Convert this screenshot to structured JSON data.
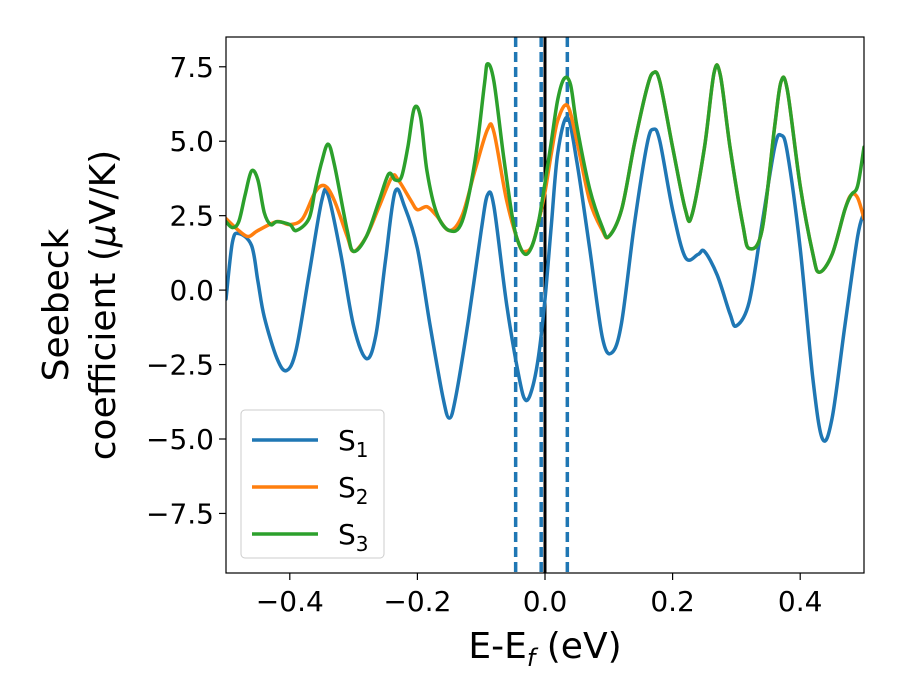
{
  "chart_data": {
    "type": "line",
    "title": "",
    "xlabel": {
      "base": "E-E",
      "sub": "f",
      "rest": " (eV)"
    },
    "ylabel": {
      "line1": "Seebeck",
      "line2": "coefficient  (",
      "mu": "μ",
      "unit": "V/K)"
    },
    "xlim": [
      -0.5,
      0.5
    ],
    "ylim": [
      -9.5,
      8.5
    ],
    "xticks": [
      -0.4,
      -0.2,
      0.0,
      0.2,
      0.4
    ],
    "xtick_labels": [
      "−0.4",
      "−0.2",
      "0.0",
      "0.2",
      "0.4"
    ],
    "yticks": [
      7.5,
      5.0,
      2.5,
      0.0,
      -2.5,
      -5.0,
      -7.5
    ],
    "ytick_labels": [
      "7.5",
      "5.0",
      "2.5",
      "0.0",
      "−2.5",
      "−5.0",
      "−7.5"
    ],
    "grid": false,
    "legend_position": "lower-left",
    "vlines": [
      {
        "x": -0.046,
        "style": "dashed",
        "color": "#1f77b4"
      },
      {
        "x": -0.006,
        "style": "dashed",
        "color": "#1f77b4"
      },
      {
        "x": 0.0,
        "style": "solid",
        "color": "#000000"
      },
      {
        "x": 0.035,
        "style": "dashed",
        "color": "#1f77b4"
      }
    ],
    "series": [
      {
        "base": "S",
        "sub": "1",
        "color": "#1f77b4",
        "points": [
          [
            -0.5,
            -0.3
          ],
          [
            -0.49,
            1.6
          ],
          [
            -0.48,
            1.9
          ],
          [
            -0.46,
            1.5
          ],
          [
            -0.45,
            0.3
          ],
          [
            -0.44,
            -0.9
          ],
          [
            -0.42,
            -2.3
          ],
          [
            -0.405,
            -2.7
          ],
          [
            -0.39,
            -2.0
          ],
          [
            -0.37,
            0.5
          ],
          [
            -0.35,
            3.0
          ],
          [
            -0.34,
            3.2
          ],
          [
            -0.32,
            1.2
          ],
          [
            -0.3,
            -1.2
          ],
          [
            -0.28,
            -2.3
          ],
          [
            -0.265,
            -1.5
          ],
          [
            -0.25,
            1.0
          ],
          [
            -0.235,
            3.3
          ],
          [
            -0.22,
            2.8
          ],
          [
            -0.2,
            1.4
          ],
          [
            -0.18,
            -1.2
          ],
          [
            -0.16,
            -3.6
          ],
          [
            -0.15,
            -4.3
          ],
          [
            -0.14,
            -3.6
          ],
          [
            -0.12,
            -1.0
          ],
          [
            -0.1,
            2.0
          ],
          [
            -0.09,
            3.2
          ],
          [
            -0.08,
            2.8
          ],
          [
            -0.06,
            -0.5
          ],
          [
            -0.04,
            -3.0
          ],
          [
            -0.03,
            -3.7
          ],
          [
            -0.02,
            -3.3
          ],
          [
            -0.01,
            -2.2
          ],
          [
            0.0,
            -0.3
          ],
          [
            0.01,
            2.2
          ],
          [
            0.02,
            4.6
          ],
          [
            0.035,
            5.8
          ],
          [
            0.05,
            4.3
          ],
          [
            0.07,
            1.4
          ],
          [
            0.09,
            -1.6
          ],
          [
            0.105,
            -2.1
          ],
          [
            0.12,
            -1.1
          ],
          [
            0.14,
            2.2
          ],
          [
            0.16,
            4.9
          ],
          [
            0.17,
            5.4
          ],
          [
            0.18,
            5.0
          ],
          [
            0.2,
            2.7
          ],
          [
            0.22,
            1.1
          ],
          [
            0.24,
            1.2
          ],
          [
            0.25,
            1.3
          ],
          [
            0.27,
            0.5
          ],
          [
            0.29,
            -0.8
          ],
          [
            0.3,
            -1.2
          ],
          [
            0.32,
            -0.4
          ],
          [
            0.34,
            2.2
          ],
          [
            0.36,
            4.8
          ],
          [
            0.37,
            5.2
          ],
          [
            0.38,
            4.6
          ],
          [
            0.4,
            1.4
          ],
          [
            0.42,
            -3.0
          ],
          [
            0.435,
            -5.0
          ],
          [
            0.45,
            -4.3
          ],
          [
            0.47,
            -1.2
          ],
          [
            0.49,
            1.8
          ],
          [
            0.5,
            2.6
          ]
        ]
      },
      {
        "base": "S",
        "sub": "2",
        "color": "#ff7f0e",
        "points": [
          [
            -0.5,
            2.4
          ],
          [
            -0.48,
            2.0
          ],
          [
            -0.465,
            1.8
          ],
          [
            -0.45,
            2.0
          ],
          [
            -0.42,
            2.3
          ],
          [
            -0.4,
            2.2
          ],
          [
            -0.38,
            2.4
          ],
          [
            -0.36,
            3.3
          ],
          [
            -0.345,
            3.5
          ],
          [
            -0.33,
            3.0
          ],
          [
            -0.31,
            1.8
          ],
          [
            -0.3,
            1.3
          ],
          [
            -0.28,
            1.8
          ],
          [
            -0.26,
            2.8
          ],
          [
            -0.24,
            3.8
          ],
          [
            -0.23,
            3.7
          ],
          [
            -0.21,
            3.0
          ],
          [
            -0.2,
            2.7
          ],
          [
            -0.185,
            2.8
          ],
          [
            -0.17,
            2.5
          ],
          [
            -0.15,
            2.0
          ],
          [
            -0.13,
            2.5
          ],
          [
            -0.11,
            4.0
          ],
          [
            -0.09,
            5.4
          ],
          [
            -0.08,
            5.3
          ],
          [
            -0.06,
            3.0
          ],
          [
            -0.04,
            1.5
          ],
          [
            -0.03,
            1.3
          ],
          [
            -0.02,
            1.5
          ],
          [
            -0.01,
            2.3
          ],
          [
            0.0,
            3.3
          ],
          [
            0.01,
            4.6
          ],
          [
            0.02,
            5.7
          ],
          [
            0.035,
            6.2
          ],
          [
            0.05,
            5.0
          ],
          [
            0.07,
            3.0
          ],
          [
            0.09,
            2.0
          ],
          [
            0.1,
            1.8
          ],
          [
            0.12,
            2.7
          ],
          [
            0.14,
            4.9
          ],
          [
            0.16,
            6.8
          ],
          [
            0.17,
            7.3
          ],
          [
            0.18,
            7.0
          ],
          [
            0.2,
            4.8
          ],
          [
            0.22,
            2.7
          ],
          [
            0.23,
            2.5
          ],
          [
            0.25,
            4.8
          ],
          [
            0.265,
            7.3
          ],
          [
            0.275,
            7.2
          ],
          [
            0.29,
            4.8
          ],
          [
            0.31,
            2.2
          ],
          [
            0.32,
            1.4
          ],
          [
            0.34,
            2.0
          ],
          [
            0.36,
            5.5
          ],
          [
            0.37,
            7.0
          ],
          [
            0.38,
            6.7
          ],
          [
            0.4,
            3.5
          ],
          [
            0.42,
            1.2
          ],
          [
            0.43,
            0.6
          ],
          [
            0.45,
            1.2
          ],
          [
            0.47,
            2.7
          ],
          [
            0.48,
            3.2
          ],
          [
            0.49,
            3.1
          ],
          [
            0.5,
            2.4
          ]
        ]
      },
      {
        "base": "S",
        "sub": "3",
        "color": "#2ca02c",
        "points": [
          [
            -0.5,
            2.3
          ],
          [
            -0.49,
            2.1
          ],
          [
            -0.48,
            2.3
          ],
          [
            -0.47,
            3.2
          ],
          [
            -0.46,
            4.0
          ],
          [
            -0.45,
            3.7
          ],
          [
            -0.44,
            2.6
          ],
          [
            -0.43,
            2.2
          ],
          [
            -0.42,
            2.3
          ],
          [
            -0.4,
            2.2
          ],
          [
            -0.39,
            2.0
          ],
          [
            -0.37,
            2.4
          ],
          [
            -0.36,
            3.4
          ],
          [
            -0.35,
            4.3
          ],
          [
            -0.34,
            4.9
          ],
          [
            -0.33,
            4.2
          ],
          [
            -0.31,
            2.0
          ],
          [
            -0.3,
            1.3
          ],
          [
            -0.28,
            1.8
          ],
          [
            -0.26,
            3.0
          ],
          [
            -0.245,
            3.9
          ],
          [
            -0.235,
            3.7
          ],
          [
            -0.225,
            3.8
          ],
          [
            -0.215,
            4.8
          ],
          [
            -0.205,
            6.1
          ],
          [
            -0.195,
            5.8
          ],
          [
            -0.185,
            4.0
          ],
          [
            -0.17,
            2.6
          ],
          [
            -0.15,
            2.0
          ],
          [
            -0.13,
            2.3
          ],
          [
            -0.11,
            4.3
          ],
          [
            -0.095,
            6.9
          ],
          [
            -0.09,
            7.6
          ],
          [
            -0.08,
            7.0
          ],
          [
            -0.065,
            4.5
          ],
          [
            -0.05,
            2.3
          ],
          [
            -0.04,
            1.5
          ],
          [
            -0.03,
            1.2
          ],
          [
            -0.02,
            1.5
          ],
          [
            -0.01,
            2.3
          ],
          [
            0.0,
            3.6
          ],
          [
            0.01,
            5.0
          ],
          [
            0.02,
            6.4
          ],
          [
            0.03,
            7.1
          ],
          [
            0.04,
            6.9
          ],
          [
            0.05,
            5.5
          ],
          [
            0.07,
            3.4
          ],
          [
            0.09,
            2.1
          ],
          [
            0.1,
            1.8
          ],
          [
            0.12,
            2.7
          ],
          [
            0.14,
            4.9
          ],
          [
            0.16,
            6.8
          ],
          [
            0.17,
            7.3
          ],
          [
            0.18,
            7.0
          ],
          [
            0.2,
            4.8
          ],
          [
            0.22,
            2.7
          ],
          [
            0.23,
            2.5
          ],
          [
            0.25,
            4.8
          ],
          [
            0.265,
            7.3
          ],
          [
            0.275,
            7.2
          ],
          [
            0.29,
            4.8
          ],
          [
            0.31,
            2.2
          ],
          [
            0.32,
            1.4
          ],
          [
            0.34,
            2.0
          ],
          [
            0.36,
            5.5
          ],
          [
            0.37,
            7.0
          ],
          [
            0.38,
            6.7
          ],
          [
            0.4,
            3.5
          ],
          [
            0.42,
            1.2
          ],
          [
            0.43,
            0.6
          ],
          [
            0.45,
            1.2
          ],
          [
            0.47,
            2.7
          ],
          [
            0.48,
            3.2
          ],
          [
            0.49,
            3.5
          ],
          [
            0.5,
            4.8
          ]
        ]
      }
    ]
  }
}
